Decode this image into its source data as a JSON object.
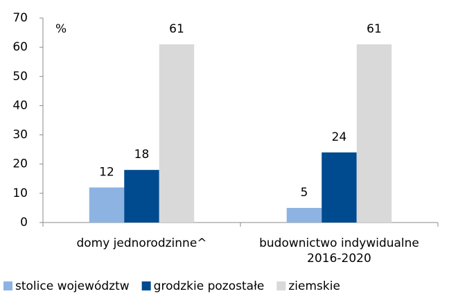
{
  "chart_data": {
    "type": "bar",
    "annotation": "%",
    "categories": [
      "domy jednorodzinne^",
      "budownictwo indywidualne\n2016-2020"
    ],
    "series": [
      {
        "name": "stolice województw",
        "color": "#8db3e2",
        "values": [
          12,
          5
        ]
      },
      {
        "name": "grodzkie pozostałe",
        "color": "#004a8f",
        "values": [
          18,
          24
        ]
      },
      {
        "name": "ziemskie",
        "color": "#d9d9d9",
        "values": [
          61,
          61
        ]
      }
    ],
    "ylim": [
      0,
      70
    ],
    "yticks": [
      0,
      10,
      20,
      30,
      40,
      50,
      60,
      70
    ],
    "grid": false,
    "legend": "bottom"
  }
}
